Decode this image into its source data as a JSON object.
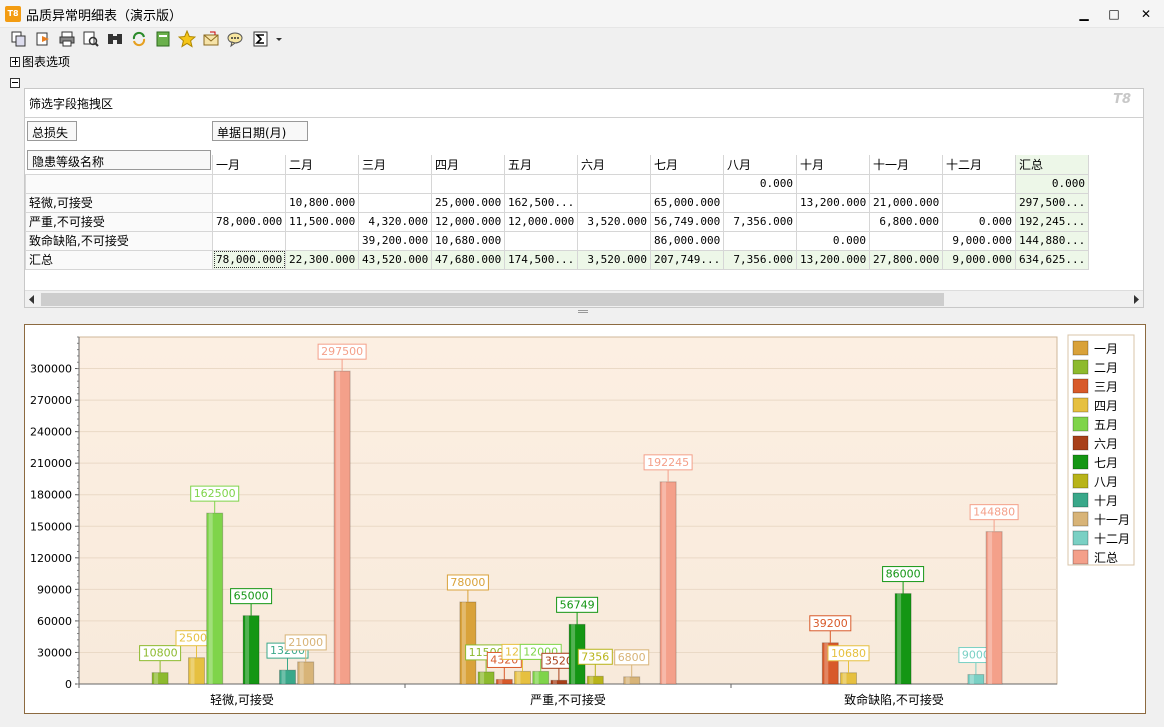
{
  "window": {
    "title": "品质异常明细表（演示版）",
    "app_icon": "T8"
  },
  "toolbar": {
    "icons": [
      "copy-icon",
      "export-icon",
      "print-icon",
      "preview-icon",
      "find-icon",
      "refresh-icon",
      "excel-icon",
      "favorite-icon",
      "mail-icon",
      "comment-icon",
      "sum-icon"
    ]
  },
  "options": {
    "chart_options_label": "图表选项"
  },
  "pivot": {
    "filter_area_label": "筛选字段拖拽区",
    "brand": "T8",
    "data_field": "总损失",
    "column_field": "单据日期(月)",
    "row_field": "隐患等级名称",
    "columns": [
      "一月",
      "二月",
      "三月",
      "四月",
      "五月",
      "六月",
      "七月",
      "八月",
      "十月",
      "十一月",
      "十二月",
      "汇总"
    ],
    "rows": [
      {
        "label": "",
        "cells": [
          "",
          "",
          "",
          "",
          "",
          "",
          "",
          "0.000",
          "",
          "",
          "",
          "0.000"
        ]
      },
      {
        "label": "轻微,可接受",
        "cells": [
          "",
          "10,800.000",
          "",
          "25,000.000",
          "162,500...",
          "",
          "65,000.000",
          "",
          "13,200.000",
          "21,000.000",
          "",
          "297,500..."
        ]
      },
      {
        "label": "严重,不可接受",
        "cells": [
          "78,000.000",
          "11,500.000",
          "4,320.000",
          "12,000.000",
          "12,000.000",
          "3,520.000",
          "56,749.000",
          "7,356.000",
          "",
          "6,800.000",
          "0.000",
          "192,245..."
        ]
      },
      {
        "label": "致命缺陷,不可接受",
        "cells": [
          "",
          "",
          "39,200.000",
          "10,680.000",
          "",
          "",
          "86,000.000",
          "",
          "0.000",
          "",
          "9,000.000",
          "144,880..."
        ]
      },
      {
        "label": "汇总",
        "cells": [
          "78,000.000",
          "22,300.000",
          "43,520.000",
          "47,680.000",
          "174,500...",
          "3,520.000",
          "207,749...",
          "7,356.000",
          "13,200.000",
          "27,800.000",
          "9,000.000",
          "634,625..."
        ]
      }
    ]
  },
  "chart_data": {
    "type": "bar",
    "categories": [
      "轻微,可接受",
      "严重,不可接受",
      "致命缺陷,不可接受"
    ],
    "ylim": [
      0,
      330000
    ],
    "yticks": [
      "0",
      "30000",
      "60000",
      "90000",
      "120000",
      "150000",
      "180000",
      "210000",
      "240000",
      "270000",
      "300000"
    ],
    "legend_position": "right",
    "series": [
      {
        "name": "一月",
        "color": "#d9a23a",
        "values": [
          null,
          78000,
          null
        ],
        "labels": [
          "",
          "78000",
          ""
        ]
      },
      {
        "name": "二月",
        "color": "#8dba2e",
        "values": [
          10800,
          11500,
          null
        ],
        "labels": [
          "10800",
          "11500",
          ""
        ]
      },
      {
        "name": "三月",
        "color": "#d85a2a",
        "values": [
          null,
          4320,
          39200
        ],
        "labels": [
          "",
          "4320",
          "39200"
        ]
      },
      {
        "name": "四月",
        "color": "#e6c040",
        "values": [
          25000,
          12000,
          10680
        ],
        "labels": [
          "25000",
          "12000",
          "10680"
        ]
      },
      {
        "name": "五月",
        "color": "#7fd44a",
        "values": [
          162500,
          12000,
          null
        ],
        "labels": [
          "162500",
          "12000",
          ""
        ]
      },
      {
        "name": "六月",
        "color": "#a8401a",
        "values": [
          null,
          3520,
          null
        ],
        "labels": [
          "",
          "3520",
          ""
        ]
      },
      {
        "name": "七月",
        "color": "#149614",
        "values": [
          65000,
          56749,
          86000
        ],
        "labels": [
          "65000",
          "56749",
          "86000"
        ]
      },
      {
        "name": "八月",
        "color": "#b8b41a",
        "values": [
          null,
          7356,
          null
        ],
        "labels": [
          "",
          "7356",
          ""
        ]
      },
      {
        "name": "十月",
        "color": "#3aa88a",
        "values": [
          13200,
          null,
          0
        ],
        "labels": [
          "13200",
          "",
          ""
        ]
      },
      {
        "name": "十一月",
        "color": "#d8b478",
        "values": [
          21000,
          6800,
          null
        ],
        "labels": [
          "21000",
          "6800",
          ""
        ]
      },
      {
        "name": "十二月",
        "color": "#7ad0c4",
        "values": [
          null,
          0,
          9000
        ],
        "labels": [
          "",
          "",
          "9000"
        ]
      },
      {
        "name": "汇总",
        "color": "#f4a08a",
        "values": [
          297500,
          192245,
          144880
        ],
        "labels": [
          "297500",
          "192245",
          "144880"
        ]
      }
    ]
  }
}
